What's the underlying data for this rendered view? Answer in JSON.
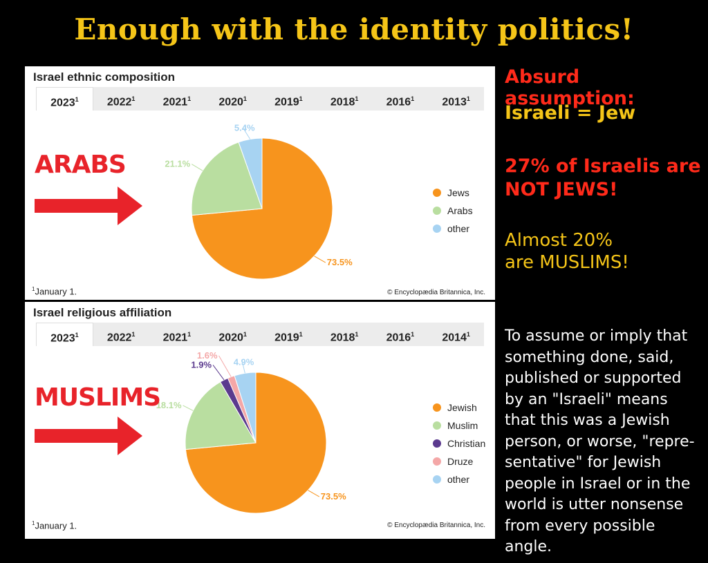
{
  "headline": "Enough with the identity politics!",
  "side": {
    "absurd": "Absurd assumption:",
    "israeli_jew": "Israeli = Jew",
    "not_jews_line1": "27% of Israelis are",
    "not_jews_line2": "NOT JEWS!",
    "muslims_line1": "Almost 20%",
    "muslims_line2": "are MUSLIMS!",
    "paragraph": [
      "To assume or imply that",
      "something done, said,",
      "published or supported",
      "by an \"Israeli\" means",
      "that this was a Jewish",
      "person, or worse, \"repre-",
      "sentative\" for Jewish",
      "people in Israel or in the",
      "world is utter nonsense",
      "from every possible angle."
    ],
    "colors": {
      "red": "#ff2a1a",
      "yellow": "#f5c518"
    }
  },
  "panel1": {
    "title": "Israel ethnic composition",
    "tabs": [
      "2023",
      "2022",
      "2021",
      "2020",
      "2019",
      "2018",
      "2016",
      "2013"
    ],
    "tab_marker": "1",
    "active_tab": 0,
    "overlay_label": "ARABS",
    "footnote_marker": "1",
    "footnote": "January 1.",
    "credit": "© Encyclopædia Britannica, Inc."
  },
  "panel2": {
    "title": "Israel religious affiliation",
    "tabs": [
      "2023",
      "2022",
      "2021",
      "2020",
      "2019",
      "2018",
      "2016",
      "2014"
    ],
    "tab_marker": "1",
    "active_tab": 0,
    "overlay_label": "MUSLIMS",
    "footnote_marker": "1",
    "footnote": "January 1.",
    "credit": "© Encyclopædia Britannica, Inc."
  },
  "chart_data": [
    {
      "type": "pie",
      "title": "Israel ethnic composition",
      "categories": [
        "Jews",
        "Arabs",
        "other"
      ],
      "values": [
        73.5,
        21.1,
        5.4
      ],
      "data_labels": [
        "73.5%",
        "21.1%",
        "5.4%"
      ],
      "colors": [
        "#f7941d",
        "#b9dea0",
        "#a7d3f2"
      ],
      "legend_placement": "right"
    },
    {
      "type": "pie",
      "title": "Israel religious affiliation",
      "categories": [
        "Jewish",
        "Muslim",
        "Christian",
        "Druze",
        "other"
      ],
      "values": [
        73.5,
        18.1,
        1.9,
        1.6,
        4.9
      ],
      "data_labels": [
        "73.5%",
        "18.1%",
        "1.9%",
        "1.6%",
        "4.9%"
      ],
      "colors": [
        "#f7941d",
        "#b9dea0",
        "#5b3a8e",
        "#f4a7a7",
        "#a7d3f2"
      ],
      "legend_placement": "right"
    }
  ]
}
